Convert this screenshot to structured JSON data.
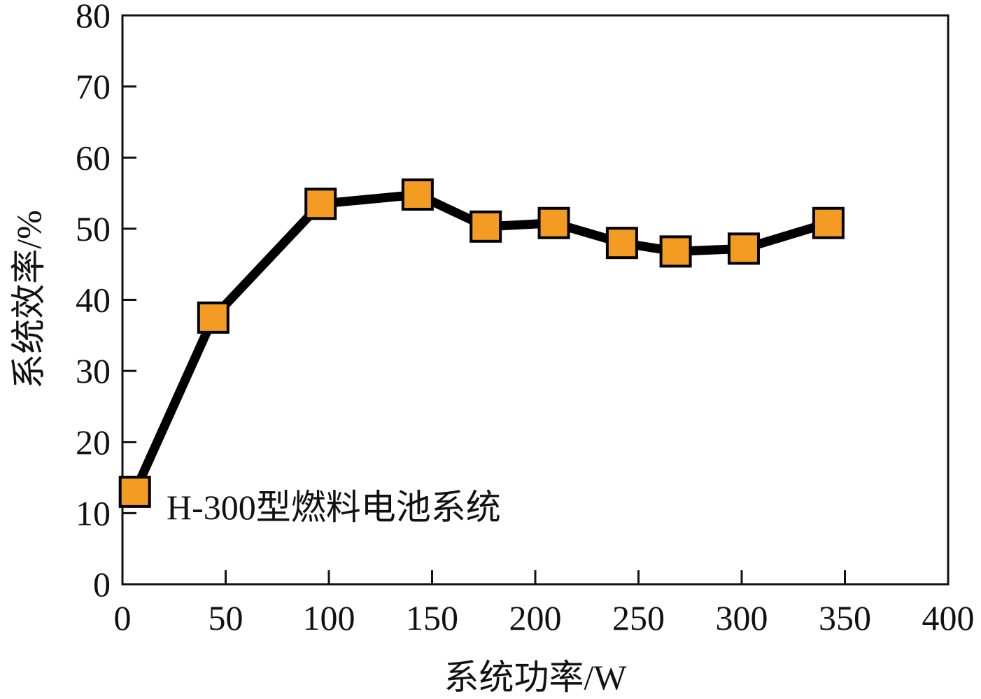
{
  "chart_data": {
    "type": "line",
    "xlabel": "系统功率/W",
    "ylabel": "系统效率/%",
    "xlim": [
      0,
      400
    ],
    "ylim": [
      0,
      80
    ],
    "x_ticks": [
      0,
      50,
      100,
      150,
      200,
      250,
      300,
      350,
      400
    ],
    "y_ticks": [
      0,
      10,
      20,
      30,
      40,
      50,
      60,
      70,
      80
    ],
    "grid": false,
    "legend_position": "bottom-left",
    "series": [
      {
        "name": "H-300型燃料电池系统",
        "marker": "square",
        "line_color": "#000000",
        "marker_color": "#f39b23",
        "x": [
          6,
          44,
          96,
          143,
          176,
          209,
          242,
          268,
          301,
          342
        ],
        "y": [
          13,
          37.5,
          53.5,
          54.8,
          50.3,
          50.8,
          48.0,
          46.8,
          47.2,
          50.8
        ]
      }
    ]
  }
}
